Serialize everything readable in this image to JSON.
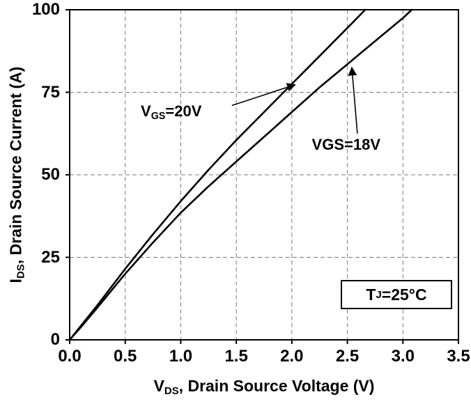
{
  "chart_data": {
    "type": "line",
    "title": "",
    "xlabel": {
      "prefix": "V",
      "sub": "DS",
      "suffix": ", Drain Source Voltage (V)"
    },
    "ylabel": {
      "prefix": "I",
      "sub": "DS",
      "suffix": ", Drain Source Current (A)"
    },
    "xlim": [
      0,
      3.5
    ],
    "ylim": [
      0,
      100
    ],
    "x_ticks": [
      0,
      0.5,
      1,
      1.5,
      2,
      2.5,
      3,
      3.5
    ],
    "x_tick_labels": [
      "0.0",
      "0.5",
      "1.0",
      "1.5",
      "2.0",
      "2.5",
      "3.0",
      "3.5"
    ],
    "y_ticks": [
      0,
      25,
      50,
      75,
      100
    ],
    "y_tick_labels": [
      "0",
      "25",
      "50",
      "75",
      "100"
    ],
    "grid": "dashed",
    "legend_position": "none",
    "colors": {
      "curve": "#000000",
      "grid": "#7a7a7a",
      "axis": "#000000",
      "text": "#000000"
    },
    "series": [
      {
        "name": "VGS=20V",
        "points": [
          [
            0,
            0
          ],
          [
            0.1,
            4.2
          ],
          [
            0.25,
            10.5
          ],
          [
            0.5,
            21.5
          ],
          [
            0.75,
            32
          ],
          [
            1.0,
            42
          ],
          [
            1.25,
            51.5
          ],
          [
            1.5,
            60.5
          ],
          [
            1.75,
            69
          ],
          [
            2.0,
            77.5
          ],
          [
            2.25,
            86
          ],
          [
            2.5,
            94.5
          ],
          [
            2.66,
            100
          ]
        ]
      },
      {
        "name": "VGS=18V",
        "points": [
          [
            0,
            0
          ],
          [
            0.1,
            3.8
          ],
          [
            0.25,
            9.8
          ],
          [
            0.5,
            20
          ],
          [
            0.75,
            29.5
          ],
          [
            1.0,
            38.5
          ],
          [
            1.25,
            46.5
          ],
          [
            1.5,
            54
          ],
          [
            1.75,
            61.5
          ],
          [
            2.0,
            69
          ],
          [
            2.25,
            76.5
          ],
          [
            2.5,
            83.5
          ],
          [
            2.75,
            90.5
          ],
          [
            3.0,
            97.5
          ],
          [
            3.08,
            100
          ]
        ]
      }
    ],
    "annotations": [
      {
        "id": "vgs20",
        "text": {
          "prefix": "V",
          "sub": "GS",
          "suffix": "=20V"
        },
        "label_pos": [
          0.64,
          72.0
        ],
        "arrow_from": [
          1.46,
          71.0
        ],
        "arrow_to": [
          2.03,
          77.3
        ]
      },
      {
        "id": "vgs18",
        "text": {
          "prefix": "VGS",
          "sub": "",
          "suffix": "=18V"
        },
        "label_pos": [
          2.18,
          61.8
        ],
        "arrow_from": [
          2.59,
          62.5
        ],
        "arrow_to": [
          2.54,
          82.5
        ]
      }
    ],
    "condition_box": {
      "prefix": "T",
      "sub": "J",
      "suffix": "=25°C"
    }
  }
}
